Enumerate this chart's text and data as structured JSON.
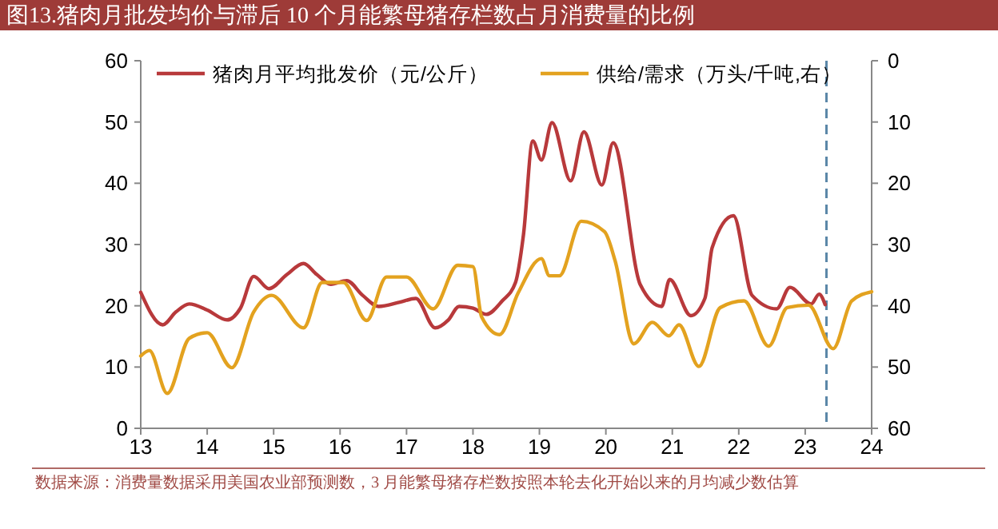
{
  "chart_data": {
    "type": "line",
    "title": "图13.猪肉月批发均价与滞后 10 个月能繁母猪存栏数占月消费量的比例",
    "xlim": [
      13,
      24
    ],
    "xticks": [
      13,
      14,
      15,
      16,
      17,
      18,
      19,
      20,
      21,
      22,
      23,
      24
    ],
    "ylim": [
      0,
      60
    ],
    "yticks": [
      0,
      10,
      20,
      30,
      40,
      50,
      60
    ],
    "y2lim": [
      60,
      0
    ],
    "y2ticks": [
      0,
      10,
      20,
      30,
      40,
      50,
      60
    ],
    "legend": "top",
    "grid": false,
    "series": [
      {
        "name": "猪肉月平均批发价（元/公斤）",
        "color": "#b8393b",
        "x": [
          13,
          13.33,
          13.53,
          13.73,
          14,
          14.3,
          14.5,
          14.7,
          14.93,
          15.2,
          15.45,
          15.65,
          15.86,
          16.1,
          16.34,
          16.58,
          16.9,
          17.14,
          17.43,
          17.63,
          17.79,
          18,
          18.2,
          18.44,
          18.64,
          18.76,
          18.9,
          19.03,
          19.19,
          19.47,
          19.67,
          19.94,
          20.11,
          20.52,
          20.84,
          20.96,
          21.28,
          21.49,
          21.6,
          21.92,
          22.2,
          22.57,
          22.77,
          23.09,
          23.21,
          23.3
        ],
        "values": [
          22.2,
          16.9,
          19,
          20.3,
          19.3,
          17.7,
          19.6,
          24.8,
          22.8,
          25.1,
          26.9,
          25.1,
          23.5,
          24.1,
          21.7,
          19.9,
          20.6,
          21.2,
          16.4,
          17.7,
          19.9,
          19.6,
          18.6,
          20.8,
          23.8,
          31.6,
          46.9,
          43.8,
          49.9,
          40.4,
          48.4,
          39.7,
          46.6,
          23.4,
          19.9,
          24.3,
          18.4,
          21.2,
          29.5,
          34.7,
          21.7,
          19.5,
          23,
          20.3,
          21.9,
          20.2
        ]
      },
      {
        "name": "供给/需求（万头/千吨,右）",
        "color": "#e3a21f",
        "axis": "y2",
        "x": [
          13,
          13.13,
          13.4,
          13.73,
          14,
          14.37,
          14.7,
          14.97,
          15.45,
          15.73,
          16.05,
          16.4,
          16.7,
          17,
          17.4,
          17.77,
          18,
          18.13,
          18.4,
          18.68,
          19.03,
          19.15,
          19.3,
          19.63,
          19.98,
          20.14,
          20.42,
          20.7,
          20.95,
          21.1,
          21.4,
          21.72,
          22.08,
          22.45,
          22.73,
          23.05,
          23.42,
          23.7,
          24
        ],
        "values": [
          48.2,
          47.3,
          54.3,
          45.3,
          44.4,
          50.1,
          41,
          38.3,
          43.6,
          36.2,
          36.2,
          42.4,
          35.3,
          35.3,
          40.5,
          33.4,
          33.6,
          41.8,
          44.7,
          37.9,
          32.3,
          35.1,
          35.1,
          26.2,
          27.9,
          32.7,
          46.2,
          42.7,
          44.9,
          43.1,
          49.9,
          40.3,
          39.2,
          46.6,
          40.3,
          39.9,
          47,
          39.2,
          37.7
        ]
      }
    ],
    "ref_lines": [
      {
        "axis": "x",
        "value": 23.32,
        "color": "#5b87a8",
        "line_style": "dashed"
      }
    ],
    "annotations": [
      "数据来源：消费量数据采用美国农业部预测数，3 月能繁母猪存栏数按照本轮去化开始以来的月均减少数估算"
    ]
  }
}
